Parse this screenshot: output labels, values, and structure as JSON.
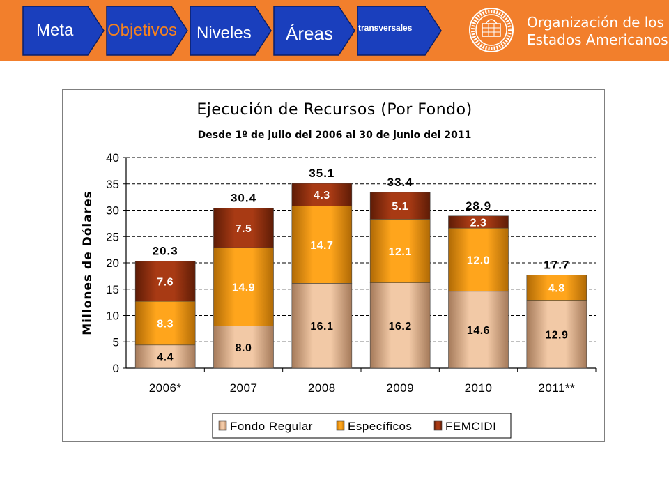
{
  "header": {
    "steps": [
      {
        "label": "Meta",
        "color": "#ffffff"
      },
      {
        "label": "Objetivos",
        "color": "#f5821f"
      },
      {
        "label": "Niveles",
        "color": "#ffffff"
      },
      {
        "label": "Áreas",
        "color": "#ffffff"
      },
      {
        "label": "transversales",
        "color": "#ffffff"
      }
    ],
    "org_name_line1": "Organización de los",
    "org_name_line2": "Estados Americanos",
    "background_color": "#f27f2c",
    "step_color": "#1a3fbd"
  },
  "chart_data": {
    "type": "bar",
    "stacked": true,
    "title": "Ejecución de Recursos (Por Fondo)",
    "subtitle": "Desde 1º de julio del 2006 al 30 de junio del 2011",
    "ylabel": "Millones de Dólares",
    "xlabel": "",
    "ylim": [
      0,
      40
    ],
    "yticks": [
      "0",
      "5",
      "10",
      "15",
      "20",
      "25",
      "30",
      "35",
      "40"
    ],
    "grid": true,
    "legend_position": "bottom",
    "categories": [
      "2006*",
      "2007",
      "2008",
      "2009",
      "2010",
      "2011**"
    ],
    "totals": [
      "20.3",
      "30.4",
      "35.1",
      "33.4",
      "28.9",
      "17.7"
    ],
    "series": [
      {
        "name": "Fondo Regular",
        "color": "#e8b48c",
        "values": [
          4.4,
          8.0,
          16.1,
          16.2,
          14.6,
          12.9
        ]
      },
      {
        "name": "Específicos",
        "color": "#f39a10",
        "values": [
          8.3,
          14.9,
          14.7,
          12.1,
          12.0,
          4.8
        ]
      },
      {
        "name": "FEMCIDI",
        "color": "#8f2e10",
        "values": [
          7.6,
          7.5,
          4.3,
          5.1,
          2.3,
          null
        ]
      }
    ]
  }
}
